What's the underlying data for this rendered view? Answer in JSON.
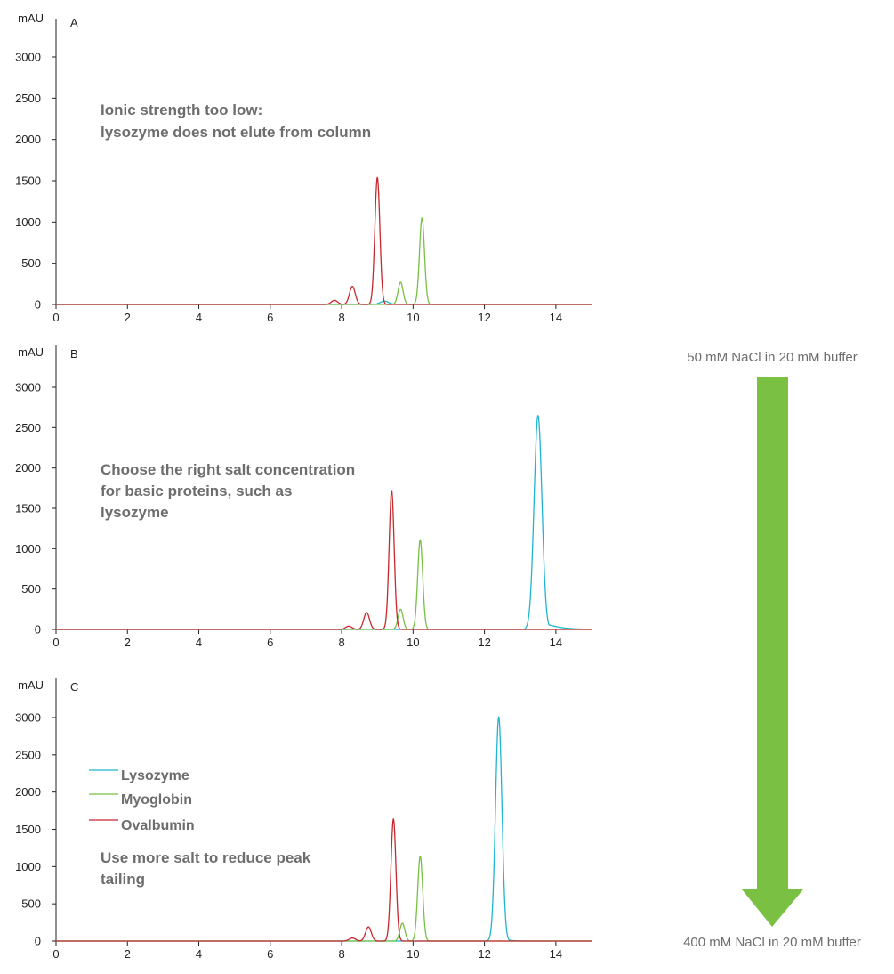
{
  "colors": {
    "lysozyme": "#1fb5d2",
    "myoglobin": "#77c044",
    "ovalbumin": "#c8282d",
    "arrow": "#7ac143",
    "axis": "#222222",
    "annotation": "#6d6d6d"
  },
  "legend": [
    "Lysozyme",
    "Myoglobin",
    "Ovalbumin"
  ],
  "gradient": {
    "top_label": "50 mM NaCl in 20 mM buffer",
    "bottom_label": "400 mM NaCl in 20 mM buffer"
  },
  "chart_data": [
    {
      "type": "line",
      "panel": "A",
      "ylabel": "mAU",
      "xlim": [
        0,
        15
      ],
      "ylim": [
        0,
        3200
      ],
      "xticks": [
        0,
        2,
        4,
        6,
        8,
        10,
        12,
        14
      ],
      "yticks": [
        0,
        500,
        1000,
        1500,
        2000,
        2500,
        3000
      ],
      "annotation": [
        "Ionic strength too low:",
        "lysozyme does not elute from column"
      ],
      "series": [
        {
          "name": "Lysozyme",
          "color_key": "lysozyme",
          "peaks": [
            {
              "x": 9.2,
              "height": 40,
              "width": 0.12
            }
          ]
        },
        {
          "name": "Myoglobin",
          "color_key": "myoglobin",
          "peaks": [
            {
              "x": 9.65,
              "height": 270,
              "width": 0.07
            },
            {
              "x": 10.25,
              "height": 1050,
              "width": 0.07
            }
          ]
        },
        {
          "name": "Ovalbumin",
          "color_key": "ovalbumin",
          "peaks": [
            {
              "x": 7.8,
              "height": 50,
              "width": 0.09
            },
            {
              "x": 8.3,
              "height": 220,
              "width": 0.08
            },
            {
              "x": 9.0,
              "height": 1540,
              "width": 0.07
            }
          ]
        }
      ]
    },
    {
      "type": "line",
      "panel": "B",
      "ylabel": "mAU",
      "xlim": [
        0,
        15
      ],
      "ylim": [
        0,
        3200
      ],
      "xticks": [
        0,
        2,
        4,
        6,
        8,
        10,
        12,
        14
      ],
      "yticks": [
        0,
        500,
        1000,
        1500,
        2000,
        2500,
        3000
      ],
      "annotation": [
        "Choose the right salt concentration",
        "for basic proteins, such as",
        "lysozyme"
      ],
      "series": [
        {
          "name": "Lysozyme",
          "color_key": "lysozyme",
          "peaks": [
            {
              "x": 13.5,
              "height": 2650,
              "width": 0.11,
              "tail": 0.35
            }
          ]
        },
        {
          "name": "Myoglobin",
          "color_key": "myoglobin",
          "peaks": [
            {
              "x": 9.65,
              "height": 250,
              "width": 0.07
            },
            {
              "x": 10.2,
              "height": 1110,
              "width": 0.07
            }
          ]
        },
        {
          "name": "Ovalbumin",
          "color_key": "ovalbumin",
          "peaks": [
            {
              "x": 8.2,
              "height": 40,
              "width": 0.09
            },
            {
              "x": 8.7,
              "height": 210,
              "width": 0.08
            },
            {
              "x": 9.4,
              "height": 1720,
              "width": 0.07
            }
          ]
        }
      ]
    },
    {
      "type": "line",
      "panel": "C",
      "ylabel": "mAU",
      "xlim": [
        0,
        15
      ],
      "ylim": [
        0,
        3200
      ],
      "xticks": [
        0,
        2,
        4,
        6,
        8,
        10,
        12,
        14
      ],
      "yticks": [
        0,
        500,
        1000,
        1500,
        2000,
        2500,
        3000
      ],
      "annotation": [
        "Use more salt to reduce peak",
        "tailing"
      ],
      "series": [
        {
          "name": "Lysozyme",
          "color_key": "lysozyme",
          "peaks": [
            {
              "x": 12.4,
              "height": 3010,
              "width": 0.09,
              "tail": 0.12
            }
          ]
        },
        {
          "name": "Myoglobin",
          "color_key": "myoglobin",
          "peaks": [
            {
              "x": 9.7,
              "height": 240,
              "width": 0.07
            },
            {
              "x": 10.2,
              "height": 1140,
              "width": 0.07
            }
          ]
        },
        {
          "name": "Ovalbumin",
          "color_key": "ovalbumin",
          "peaks": [
            {
              "x": 8.3,
              "height": 40,
              "width": 0.09
            },
            {
              "x": 8.75,
              "height": 190,
              "width": 0.08
            },
            {
              "x": 9.45,
              "height": 1640,
              "width": 0.07
            }
          ]
        }
      ]
    }
  ]
}
